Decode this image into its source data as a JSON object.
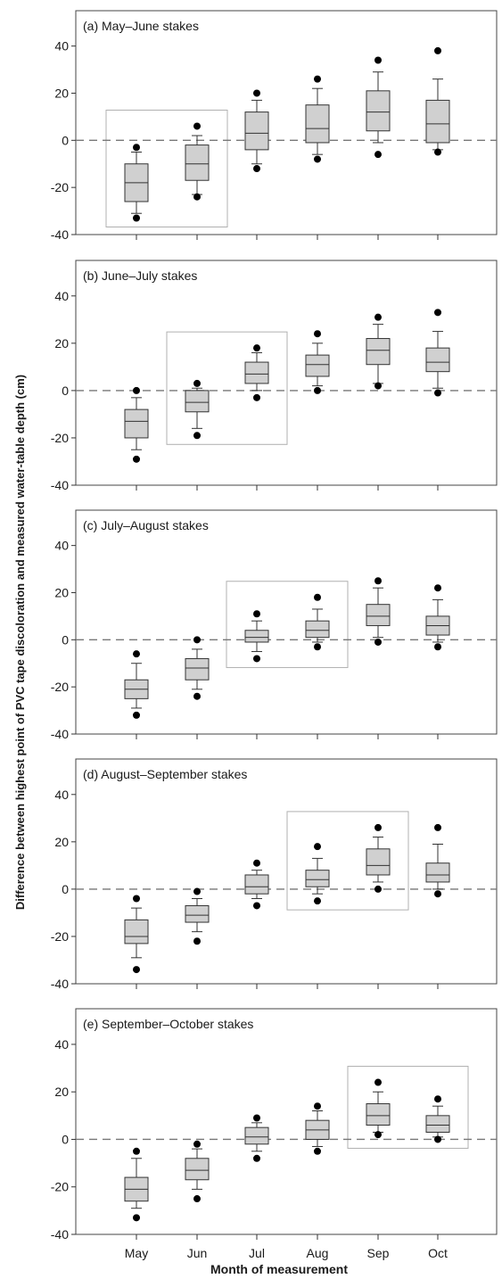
{
  "figure": {
    "ylabel": "Difference between highest point of PVC tape discoloration and measured water-table depth (cm)",
    "xlabel": "Month of measurement"
  },
  "chart_data": [
    {
      "type": "box",
      "title": "(a) May–June stakes",
      "categories": [
        "May",
        "Jun",
        "Jul",
        "Aug",
        "Sep",
        "Oct"
      ],
      "ylim": [
        -40,
        55
      ],
      "yticks": [
        -40,
        -20,
        0,
        20,
        40
      ],
      "reference_line": 0,
      "highlight": [
        "May",
        "Jun"
      ],
      "boxes": [
        {
          "min_outlier": -33,
          "wlow": -31,
          "q1": -26,
          "median": -18,
          "q3": -10,
          "whigh": -5,
          "max_outlier": -3
        },
        {
          "min_outlier": -24,
          "wlow": -23,
          "q1": -17,
          "median": -10,
          "q3": -2,
          "whigh": 2,
          "max_outlier": 6
        },
        {
          "min_outlier": -12,
          "wlow": -10,
          "q1": -4,
          "median": 3,
          "q3": 12,
          "whigh": 17,
          "max_outlier": 20
        },
        {
          "min_outlier": -8,
          "wlow": -6,
          "q1": -1,
          "median": 5,
          "q3": 15,
          "whigh": 22,
          "max_outlier": 26
        },
        {
          "min_outlier": -6,
          "wlow": -1,
          "q1": 4,
          "median": 12,
          "q3": 21,
          "whigh": 29,
          "max_outlier": 34
        },
        {
          "min_outlier": -5,
          "wlow": -4,
          "q1": -1,
          "median": 7,
          "q3": 17,
          "whigh": 26,
          "max_outlier": 38
        }
      ]
    },
    {
      "type": "box",
      "title": "(b) June–July stakes",
      "categories": [
        "May",
        "Jun",
        "Jul",
        "Aug",
        "Sep",
        "Oct"
      ],
      "ylim": [
        -40,
        55
      ],
      "yticks": [
        -40,
        -20,
        0,
        20,
        40
      ],
      "reference_line": 0,
      "highlight": [
        "Jun",
        "Jul"
      ],
      "boxes": [
        {
          "min_outlier": -29,
          "wlow": -25,
          "q1": -20,
          "median": -13,
          "q3": -8,
          "whigh": -3,
          "max_outlier": 0
        },
        {
          "min_outlier": -19,
          "wlow": -16,
          "q1": -9,
          "median": -5,
          "q3": 0,
          "whigh": 1,
          "max_outlier": 3
        },
        {
          "min_outlier": -3,
          "wlow": 0,
          "q1": 3,
          "median": 7,
          "q3": 12,
          "whigh": 16,
          "max_outlier": 18
        },
        {
          "min_outlier": 0,
          "wlow": 2,
          "q1": 6,
          "median": 11,
          "q3": 15,
          "whigh": 20,
          "max_outlier": 24
        },
        {
          "min_outlier": 2,
          "wlow": 3,
          "q1": 11,
          "median": 17,
          "q3": 22,
          "whigh": 28,
          "max_outlier": 31
        },
        {
          "min_outlier": -1,
          "wlow": 1,
          "q1": 8,
          "median": 12,
          "q3": 18,
          "whigh": 25,
          "max_outlier": 33
        }
      ]
    },
    {
      "type": "box",
      "title": "(c) July–August stakes",
      "categories": [
        "May",
        "Jun",
        "Jul",
        "Aug",
        "Sep",
        "Oct"
      ],
      "ylim": [
        -40,
        55
      ],
      "yticks": [
        -40,
        -20,
        0,
        20,
        40
      ],
      "reference_line": 0,
      "highlight": [
        "Jul",
        "Aug"
      ],
      "boxes": [
        {
          "min_outlier": -32,
          "wlow": -29,
          "q1": -25,
          "median": -21,
          "q3": -17,
          "whigh": -10,
          "max_outlier": -6
        },
        {
          "min_outlier": -24,
          "wlow": -21,
          "q1": -17,
          "median": -12,
          "q3": -8,
          "whigh": -4,
          "max_outlier": 0
        },
        {
          "min_outlier": -8,
          "wlow": -5,
          "q1": -1,
          "median": 1,
          "q3": 4,
          "whigh": 8,
          "max_outlier": 11
        },
        {
          "min_outlier": -3,
          "wlow": -1,
          "q1": 1,
          "median": 4,
          "q3": 8,
          "whigh": 13,
          "max_outlier": 18
        },
        {
          "min_outlier": -1,
          "wlow": 1,
          "q1": 6,
          "median": 10,
          "q3": 15,
          "whigh": 22,
          "max_outlier": 25
        },
        {
          "min_outlier": -3,
          "wlow": -1,
          "q1": 2,
          "median": 6,
          "q3": 10,
          "whigh": 17,
          "max_outlier": 22
        }
      ]
    },
    {
      "type": "box",
      "title": "(d) August–September stakes",
      "categories": [
        "May",
        "Jun",
        "Jul",
        "Aug",
        "Sep",
        "Oct"
      ],
      "ylim": [
        -40,
        55
      ],
      "yticks": [
        -40,
        -20,
        0,
        20,
        40
      ],
      "reference_line": 0,
      "highlight": [
        "Aug",
        "Sep"
      ],
      "boxes": [
        {
          "min_outlier": -34,
          "wlow": -29,
          "q1": -23,
          "median": -20,
          "q3": -13,
          "whigh": -8,
          "max_outlier": -4
        },
        {
          "min_outlier": -22,
          "wlow": -18,
          "q1": -14,
          "median": -11,
          "q3": -7,
          "whigh": -4,
          "max_outlier": -1
        },
        {
          "min_outlier": -7,
          "wlow": -4,
          "q1": -2,
          "median": 1,
          "q3": 6,
          "whigh": 8,
          "max_outlier": 11
        },
        {
          "min_outlier": -5,
          "wlow": -2,
          "q1": 1,
          "median": 4,
          "q3": 8,
          "whigh": 13,
          "max_outlier": 18
        },
        {
          "min_outlier": 0,
          "wlow": 3,
          "q1": 6,
          "median": 10,
          "q3": 17,
          "whigh": 22,
          "max_outlier": 26
        },
        {
          "min_outlier": -2,
          "wlow": 0,
          "q1": 3,
          "median": 6,
          "q3": 11,
          "whigh": 19,
          "max_outlier": 26
        }
      ]
    },
    {
      "type": "box",
      "title": "(e) September–October stakes",
      "categories": [
        "May",
        "Jun",
        "Jul",
        "Aug",
        "Sep",
        "Oct"
      ],
      "ylim": [
        -40,
        55
      ],
      "yticks": [
        -40,
        -20,
        0,
        20,
        40
      ],
      "reference_line": 0,
      "highlight": [
        "Sep",
        "Oct"
      ],
      "boxes": [
        {
          "min_outlier": -33,
          "wlow": -29,
          "q1": -26,
          "median": -21,
          "q3": -16,
          "whigh": -8,
          "max_outlier": -5
        },
        {
          "min_outlier": -25,
          "wlow": -21,
          "q1": -17,
          "median": -13,
          "q3": -8,
          "whigh": -4,
          "max_outlier": -2
        },
        {
          "min_outlier": -8,
          "wlow": -5,
          "q1": -2,
          "median": 1,
          "q3": 5,
          "whigh": 7,
          "max_outlier": 9
        },
        {
          "min_outlier": -5,
          "wlow": -3,
          "q1": 0,
          "median": 4,
          "q3": 8,
          "whigh": 12,
          "max_outlier": 14
        },
        {
          "min_outlier": 2,
          "wlow": 3,
          "q1": 6,
          "median": 10,
          "q3": 15,
          "whigh": 20,
          "max_outlier": 24
        },
        {
          "min_outlier": 0,
          "wlow": 1,
          "q1": 3,
          "median": 6,
          "q3": 10,
          "whigh": 14,
          "max_outlier": 17
        }
      ]
    }
  ]
}
